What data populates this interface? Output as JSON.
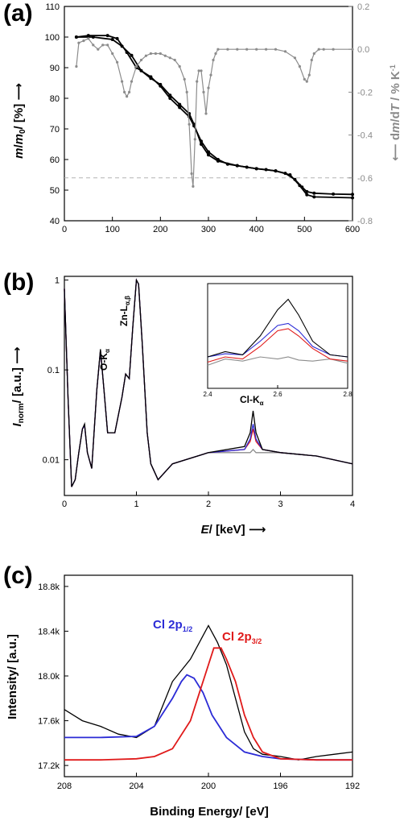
{
  "figure": {
    "panel_a_letter": "(a)",
    "panel_b_letter": "(b)",
    "panel_c_letter": "(c)"
  },
  "chart_data": [
    {
      "type": "line",
      "panel": "a",
      "xlabel": "",
      "ylabel_left": "m/m0/ [%]",
      "ylabel_right": "dm/dT / % K^-1",
      "xlim": [
        0,
        600
      ],
      "ylim_left": [
        40,
        110
      ],
      "ylim_right": [
        -0.8,
        0.2
      ],
      "xticks": [
        "0",
        "100",
        "200",
        "300",
        "400",
        "500",
        "600"
      ],
      "yticks_left": [
        "40",
        "50",
        "60",
        "70",
        "80",
        "90",
        "100",
        "110"
      ],
      "yticks_right": [
        "-0.8",
        "-0.6",
        "-0.4",
        "-0.2",
        "0.0",
        "0.2"
      ],
      "reference_line_right": -0.6,
      "colors": {
        "mass": "#000000",
        "derivative": "#8c8c8c",
        "reference": "#b4b4b4"
      },
      "series": [
        {
          "axis": "left",
          "x": [
            25,
            50,
            90,
            110,
            130,
            150,
            180,
            200,
            220,
            240,
            260,
            270,
            285,
            300,
            320,
            340,
            360,
            380,
            400,
            420,
            440,
            460,
            480,
            495,
            505,
            520,
            560,
            600
          ],
          "values": [
            100,
            100.5,
            100.5,
            99.5,
            95,
            90,
            87,
            84,
            80,
            77,
            74,
            71,
            66,
            62.5,
            60,
            58.5,
            58,
            57.5,
            57,
            56.7,
            56.3,
            55.5,
            53.5,
            51,
            49.5,
            49,
            48.7,
            48.6
          ]
        },
        {
          "axis": "left",
          "x": [
            25,
            60,
            100,
            120,
            140,
            160,
            180,
            200,
            220,
            240,
            260,
            270,
            285,
            300,
            320,
            360,
            400,
            440,
            470,
            490,
            505,
            520,
            600
          ],
          "values": [
            100,
            100,
            99.2,
            97,
            94,
            89,
            86.5,
            84.5,
            81,
            78,
            75,
            71.5,
            65,
            61.5,
            59.5,
            58,
            57,
            56.3,
            55,
            51.5,
            48.5,
            47.8,
            47.5
          ]
        },
        {
          "axis": "right",
          "x": [
            25,
            30,
            40,
            50,
            60,
            70,
            80,
            90,
            100,
            110,
            120,
            125,
            130,
            135,
            140,
            150,
            160,
            170,
            180,
            190,
            200,
            210,
            220,
            230,
            240,
            250,
            255,
            260,
            265,
            268,
            272,
            276,
            280,
            285,
            290,
            295,
            300,
            305,
            310,
            315,
            320,
            340,
            360,
            380,
            400,
            420,
            440,
            460,
            480,
            490,
            500,
            505,
            510,
            515,
            520,
            530,
            540,
            560,
            600
          ],
          "values": [
            -0.08,
            0.03,
            0.04,
            0.05,
            0.02,
            0.0,
            0.02,
            0.02,
            -0.02,
            -0.06,
            -0.15,
            -0.2,
            -0.22,
            -0.2,
            -0.15,
            -0.08,
            -0.05,
            -0.03,
            -0.02,
            -0.02,
            -0.02,
            -0.03,
            -0.04,
            -0.05,
            -0.08,
            -0.14,
            -0.2,
            -0.35,
            -0.58,
            -0.64,
            -0.42,
            -0.15,
            -0.1,
            -0.1,
            -0.2,
            -0.3,
            -0.18,
            -0.12,
            -0.05,
            -0.02,
            0.0,
            0.0,
            0.0,
            0.0,
            0.0,
            0.0,
            0.0,
            -0.01,
            -0.04,
            -0.08,
            -0.14,
            -0.15,
            -0.12,
            -0.05,
            -0.02,
            0.0,
            0.0,
            0.0,
            0.0
          ]
        }
      ]
    },
    {
      "type": "line",
      "panel": "b",
      "xlabel": "E/ [keV]",
      "ylabel": "Inorm/ [a.u.]",
      "xlim": [
        0,
        4
      ],
      "ylim": [
        0.004,
        1.1
      ],
      "yscale": "log",
      "xticks": [
        "0",
        "1",
        "2",
        "3",
        "4"
      ],
      "yticks": [
        "0.01",
        "0.1",
        "1"
      ],
      "annotations": [
        "O-K",
        "α",
        "Zn-L",
        "α,β",
        "Cl-K",
        "α"
      ],
      "colors": [
        "#000000",
        "#2b2bd6",
        "#e01a1a",
        "#8c8c8c"
      ],
      "series": [
        {
          "x": [
            0,
            0.05,
            0.1,
            0.15,
            0.2,
            0.25,
            0.28,
            0.32,
            0.38,
            0.45,
            0.5,
            0.55,
            0.6,
            0.7,
            0.8,
            0.85,
            0.9,
            0.95,
            1.0,
            1.03,
            1.08,
            1.15,
            1.2,
            1.3,
            1.5,
            2.0,
            2.5,
            2.58,
            2.62,
            2.66,
            2.75,
            3.0,
            3.5,
            4.0
          ],
          "values": [
            0.8,
            0.05,
            0.005,
            0.006,
            0.012,
            0.022,
            0.025,
            0.012,
            0.008,
            0.06,
            0.17,
            0.06,
            0.02,
            0.02,
            0.05,
            0.09,
            0.08,
            0.3,
            1.0,
            0.9,
            0.2,
            0.02,
            0.009,
            0.006,
            0.009,
            0.012,
            0.014,
            0.02,
            0.035,
            0.02,
            0.013,
            0.012,
            0.011,
            0.009
          ]
        },
        {
          "x": [
            0,
            0.05,
            0.1,
            0.15,
            0.2,
            0.25,
            0.28,
            0.32,
            0.38,
            0.45,
            0.5,
            0.55,
            0.6,
            0.7,
            0.8,
            0.85,
            0.9,
            0.95,
            1.0,
            1.03,
            1.08,
            1.15,
            1.2,
            1.3,
            1.5,
            2.0,
            2.5,
            2.58,
            2.62,
            2.66,
            2.75,
            3.0,
            3.5,
            4.0
          ],
          "values": [
            0.8,
            0.05,
            0.005,
            0.006,
            0.012,
            0.022,
            0.024,
            0.012,
            0.008,
            0.06,
            0.165,
            0.06,
            0.02,
            0.02,
            0.05,
            0.09,
            0.08,
            0.3,
            1.0,
            0.9,
            0.2,
            0.02,
            0.009,
            0.006,
            0.009,
            0.012,
            0.013,
            0.017,
            0.025,
            0.017,
            0.013,
            0.012,
            0.011,
            0.009
          ]
        },
        {
          "x": [
            0,
            0.05,
            0.1,
            0.15,
            0.2,
            0.25,
            0.28,
            0.32,
            0.38,
            0.45,
            0.5,
            0.55,
            0.6,
            0.7,
            0.8,
            0.85,
            0.9,
            0.95,
            1.0,
            1.03,
            1.08,
            1.15,
            1.2,
            1.3,
            1.5,
            2.0,
            2.5,
            2.58,
            2.62,
            2.66,
            2.75,
            3.0,
            3.5,
            4.0
          ],
          "values": [
            0.8,
            0.05,
            0.005,
            0.006,
            0.012,
            0.022,
            0.024,
            0.012,
            0.008,
            0.06,
            0.165,
            0.06,
            0.02,
            0.02,
            0.05,
            0.09,
            0.08,
            0.3,
            1.0,
            0.9,
            0.2,
            0.02,
            0.009,
            0.006,
            0.009,
            0.012,
            0.013,
            0.016,
            0.022,
            0.016,
            0.013,
            0.012,
            0.011,
            0.009
          ]
        },
        {
          "x": [
            0,
            0.05,
            0.1,
            0.15,
            0.2,
            0.25,
            0.28,
            0.32,
            0.38,
            0.45,
            0.5,
            0.55,
            0.6,
            0.7,
            0.8,
            0.85,
            0.9,
            0.95,
            1.0,
            1.03,
            1.08,
            1.15,
            1.2,
            1.3,
            1.5,
            2.0,
            2.5,
            2.58,
            2.62,
            2.66,
            2.75,
            3.0,
            3.5,
            4.0
          ],
          "values": [
            0.8,
            0.05,
            0.005,
            0.006,
            0.012,
            0.022,
            0.024,
            0.012,
            0.008,
            0.06,
            0.165,
            0.06,
            0.02,
            0.02,
            0.05,
            0.09,
            0.08,
            0.3,
            1.0,
            0.9,
            0.2,
            0.02,
            0.009,
            0.006,
            0.009,
            0.012,
            0.012,
            0.012,
            0.013,
            0.012,
            0.012,
            0.012,
            0.011,
            0.009
          ]
        }
      ],
      "inset": {
        "xlim": [
          2.4,
          2.8
        ],
        "xticks": [
          "2.4",
          "2.6",
          "2.8"
        ],
        "series": [
          {
            "x": [
              2.4,
              2.45,
              2.5,
              2.55,
              2.6,
              2.63,
              2.66,
              2.7,
              2.75,
              2.8
            ],
            "values": [
              0.3,
              0.35,
              0.32,
              0.5,
              0.75,
              0.85,
              0.7,
              0.45,
              0.32,
              0.3
            ]
          },
          {
            "x": [
              2.4,
              2.45,
              2.5,
              2.55,
              2.6,
              2.63,
              2.66,
              2.7,
              2.75,
              2.8
            ],
            "values": [
              0.3,
              0.33,
              0.32,
              0.45,
              0.6,
              0.62,
              0.55,
              0.4,
              0.32,
              0.3
            ]
          },
          {
            "x": [
              2.4,
              2.45,
              2.5,
              2.55,
              2.6,
              2.63,
              2.66,
              2.7,
              2.75,
              2.8
            ],
            "values": [
              0.25,
              0.3,
              0.28,
              0.4,
              0.55,
              0.57,
              0.5,
              0.38,
              0.28,
              0.26
            ]
          },
          {
            "x": [
              2.4,
              2.45,
              2.5,
              2.55,
              2.6,
              2.63,
              2.66,
              2.7,
              2.75,
              2.8
            ],
            "values": [
              0.22,
              0.28,
              0.26,
              0.3,
              0.28,
              0.3,
              0.27,
              0.26,
              0.28,
              0.24
            ]
          }
        ]
      }
    },
    {
      "type": "line",
      "panel": "c",
      "xlabel": "Binding Energy/ [eV]",
      "ylabel": "Intensity/ [a.u.]",
      "xlim": [
        208,
        192
      ],
      "ylim": [
        17100,
        18900
      ],
      "xticks": [
        "208",
        "204",
        "200",
        "196",
        "192"
      ],
      "yticks": [
        "17.2k",
        "17.6k",
        "18.0k",
        "18.4k",
        "18.8k"
      ],
      "annotations": [
        "Cl 2p",
        "1/2",
        "Cl 2p",
        "3/2"
      ],
      "colors": [
        "#000000",
        "#2b2bd6",
        "#e01a1a"
      ],
      "series": [
        {
          "x": [
            208,
            207,
            206,
            205,
            204,
            203,
            202.5,
            202,
            201.5,
            201,
            200.5,
            200,
            199.5,
            199,
            198.5,
            198,
            197.5,
            197,
            196,
            195,
            194,
            193,
            192
          ],
          "values": [
            17700,
            17600,
            17550,
            17480,
            17450,
            17550,
            17750,
            17950,
            18050,
            18150,
            18300,
            18450,
            18300,
            18100,
            17800,
            17500,
            17350,
            17300,
            17280,
            17250,
            17280,
            17300,
            17320
          ]
        },
        {
          "x": [
            208,
            206,
            204,
            203,
            202,
            201.5,
            201.2,
            200.8,
            200.3,
            199.8,
            199,
            198,
            197,
            196,
            194,
            192
          ],
          "values": [
            17450,
            17450,
            17460,
            17550,
            17800,
            17950,
            18010,
            17980,
            17850,
            17650,
            17450,
            17320,
            17280,
            17260,
            17250,
            17250
          ]
        },
        {
          "x": [
            208,
            206,
            204,
            203,
            202,
            201,
            200.5,
            200,
            199.7,
            199.3,
            199,
            198.5,
            198,
            197.5,
            197,
            196,
            194,
            192
          ],
          "values": [
            17250,
            17250,
            17260,
            17280,
            17350,
            17600,
            17850,
            18100,
            18250,
            18250,
            18150,
            17950,
            17650,
            17450,
            17320,
            17260,
            17250,
            17250
          ]
        }
      ]
    }
  ]
}
